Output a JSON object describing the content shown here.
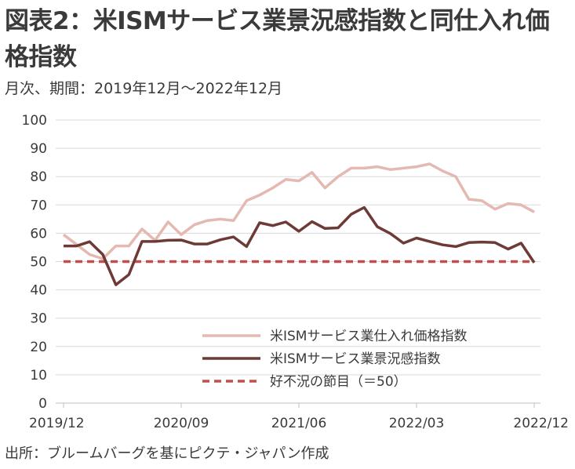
{
  "header": {
    "title": "図表2：米ISMサービス業景況感指数と同仕入れ価格指数",
    "subtitle": "月次、期間：2019年12月～2022年12月"
  },
  "footer": {
    "source": "出所：ブルームバーグを基にピクテ・ジャパン作成"
  },
  "chart_data": {
    "type": "line",
    "x": [
      "2019/12",
      "2020/01",
      "2020/02",
      "2020/03",
      "2020/04",
      "2020/05",
      "2020/06",
      "2020/07",
      "2020/08",
      "2020/09",
      "2020/10",
      "2020/11",
      "2020/12",
      "2021/01",
      "2021/02",
      "2021/03",
      "2021/04",
      "2021/05",
      "2021/06",
      "2021/07",
      "2021/08",
      "2021/09",
      "2021/10",
      "2021/11",
      "2021/12",
      "2022/01",
      "2022/02",
      "2022/03",
      "2022/04",
      "2022/05",
      "2022/06",
      "2022/07",
      "2022/08",
      "2022/09",
      "2022/10",
      "2022/11",
      "2022/12"
    ],
    "xticks": [
      "2019/12",
      "2020/09",
      "2021/06",
      "2022/03",
      "2022/12"
    ],
    "yticks": [
      "0",
      "10",
      "20",
      "30",
      "40",
      "50",
      "60",
      "70",
      "80",
      "90",
      "100"
    ],
    "ylim": [
      0,
      100
    ],
    "grid": "horizontal",
    "legend_position": "bottom-right",
    "series": [
      {
        "name": "米ISMサービス業仕入れ価格指数",
        "color": "#e3b9b2",
        "values": [
          59.5,
          56.0,
          52.5,
          51.0,
          55.5,
          55.5,
          61.5,
          57.5,
          64.0,
          59.5,
          63.0,
          64.5,
          65.0,
          64.5,
          71.5,
          73.5,
          76.0,
          79.0,
          78.5,
          81.5,
          76.0,
          80.0,
          83.0,
          83.0,
          83.5,
          82.5,
          83.0,
          83.5,
          84.5,
          82.0,
          80.0,
          72.0,
          71.5,
          68.5,
          70.5,
          70.0,
          67.5
        ]
      },
      {
        "name": "米ISMサービス業景況感指数",
        "color": "#6e3a35",
        "values": [
          55.5,
          55.5,
          57.0,
          52.5,
          41.8,
          45.4,
          57.1,
          57.1,
          57.5,
          57.6,
          56.2,
          56.2,
          57.7,
          58.7,
          55.3,
          63.7,
          62.7,
          64.0,
          60.7,
          64.1,
          61.7,
          61.9,
          66.7,
          69.1,
          62.3,
          59.9,
          56.5,
          58.3,
          57.1,
          55.9,
          55.3,
          56.7,
          56.9,
          56.7,
          54.4,
          56.5,
          49.6
        ]
      },
      {
        "name": "好不況の節目（＝50）",
        "color": "#c0504d",
        "dash": true,
        "values": [
          50,
          50,
          50,
          50,
          50,
          50,
          50,
          50,
          50,
          50,
          50,
          50,
          50,
          50,
          50,
          50,
          50,
          50,
          50,
          50,
          50,
          50,
          50,
          50,
          50,
          50,
          50,
          50,
          50,
          50,
          50,
          50,
          50,
          50,
          50,
          50,
          50
        ]
      }
    ]
  }
}
